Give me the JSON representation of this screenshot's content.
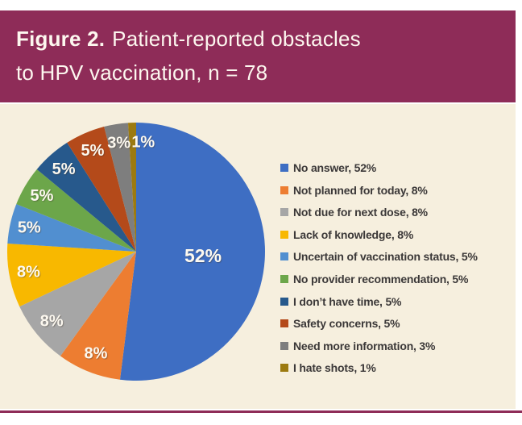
{
  "header": {
    "figure_label": "Figure 2.",
    "title_line1": "Patient-reported obstacles",
    "title_line2": "to HPV vaccination, n = 78"
  },
  "theme": {
    "maroon": "#8e2c58",
    "canvas_cream": "#f6efde",
    "header_text": "#fdf7ef",
    "legend_text": "#3b3838",
    "slice_label_text": "#fdf9f0"
  },
  "chart_data": {
    "type": "pie",
    "title": "Patient-reported obstacles to HPV vaccination",
    "sample_size_label": "n = 78",
    "unit": "%",
    "legend_position": "right",
    "start_angle_deg": 0,
    "direction": "clockwise",
    "slices": [
      {
        "label": "No answer",
        "value": 52,
        "color": "#3e6ec3"
      },
      {
        "label": "Not planned for today",
        "value": 8,
        "color": "#ed7d31"
      },
      {
        "label": "Not due for next dose",
        "value": 8,
        "color": "#a6a6a6"
      },
      {
        "label": "Lack of knowledge",
        "value": 8,
        "color": "#f8b800"
      },
      {
        "label": "Uncertain of vaccination status",
        "value": 5,
        "color": "#518fd0"
      },
      {
        "label": "No provider recommendation",
        "value": 5,
        "color": "#6ca64a"
      },
      {
        "label": "I don’t have time",
        "value": 5,
        "color": "#27598c"
      },
      {
        "label": "Safety concerns",
        "value": 5,
        "color": "#b44a1a"
      },
      {
        "label": "Need more information",
        "value": 3,
        "color": "#7e7e7e"
      },
      {
        "label": "I hate shots",
        "value": 1,
        "color": "#9c7a10"
      }
    ]
  }
}
